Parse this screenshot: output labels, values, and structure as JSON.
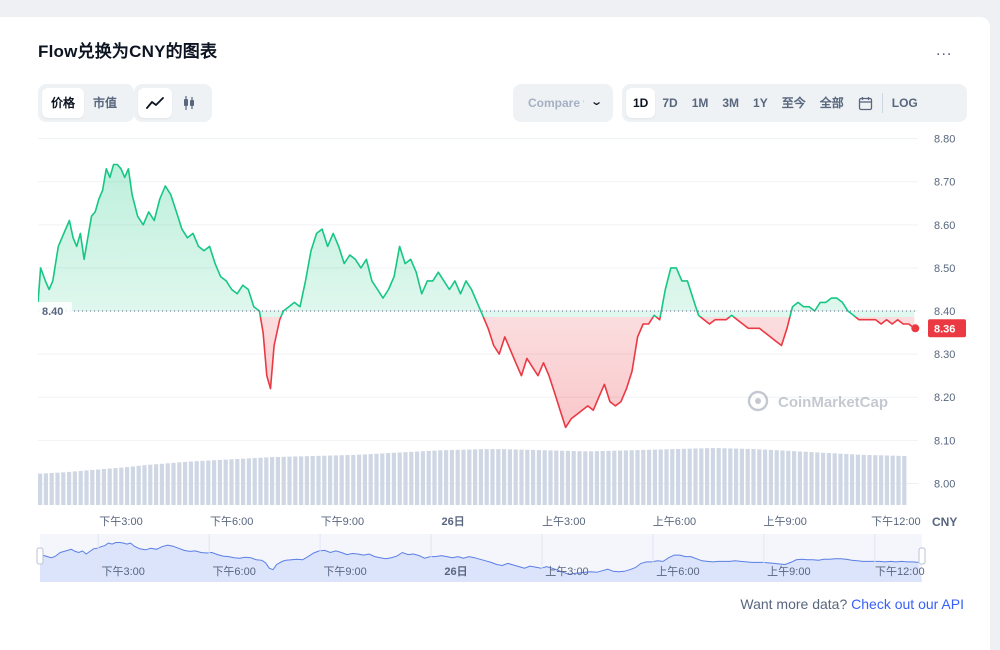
{
  "header": {
    "title": "Flow兑换为CNY的图表",
    "more_label": "..."
  },
  "toolbar": {
    "metric_tabs": [
      "价格",
      "市值"
    ],
    "active_metric": "价格",
    "chart_type_icons": [
      "line-chart-icon",
      "candlestick-icon"
    ],
    "compare_label": "Compare with",
    "range_tabs": [
      "1D",
      "7D",
      "1M",
      "3M",
      "1Y",
      "至今",
      "全部"
    ],
    "active_range": "1D",
    "calendar_icon": "calendar-icon",
    "log_label": "LOG"
  },
  "colors": {
    "up": "#16c784",
    "down": "#ea3943",
    "grid": "#eff2f5",
    "volume": "#cfd6e4",
    "navigator_fill": "#dbe4fb",
    "navigator_line": "#3861fb",
    "link": "#3861fb"
  },
  "chart_data": {
    "type": "line",
    "title": "Flow兑换为CNY的图表",
    "currency_label": "CNY",
    "baseline": 8.4,
    "baseline_label": "8.40",
    "current_value": 8.36,
    "current_label": "8.36",
    "watermark": "CoinMarketCap",
    "ylim": [
      7.95,
      8.82
    ],
    "y_ticks": [
      "8.80",
      "8.70",
      "8.60",
      "8.50",
      "8.40",
      "8.30",
      "8.20",
      "8.10",
      "8.00"
    ],
    "x_ticks": [
      "下午3:00",
      "下午6:00",
      "下午9:00",
      "26日",
      "上午3:00",
      "上午6:00",
      "上午9:00",
      "下午12:00"
    ],
    "navigator_ticks": [
      "下午3:00",
      "下午6:00",
      "下午9:00",
      "26日",
      "上午3:00",
      "上午6:00",
      "上午9:00",
      "下午12:00"
    ],
    "x": [
      0.0,
      0.1,
      0.2,
      0.3,
      0.4,
      0.5,
      0.6,
      0.7,
      0.8,
      0.9,
      1.0,
      1.1,
      1.2,
      1.3,
      1.4,
      1.5,
      1.6,
      1.7,
      1.8,
      1.9,
      2.0,
      2.1,
      2.2,
      2.3,
      2.4,
      2.5,
      2.6,
      2.7,
      2.8,
      2.9,
      3.0,
      3.1,
      3.2,
      3.3,
      3.4,
      3.5,
      3.6,
      3.7,
      3.8,
      3.9,
      4.0,
      4.1,
      4.2,
      4.3,
      4.4,
      4.5,
      4.6,
      4.7,
      4.8,
      4.9,
      5.0,
      5.1,
      5.2,
      5.3,
      5.4,
      5.5,
      5.6,
      5.7,
      5.8,
      5.9,
      6.0,
      6.1,
      6.2,
      6.3,
      6.4,
      6.5,
      6.6,
      6.7,
      6.8,
      6.9,
      7.0,
      7.1,
      7.2,
      7.3,
      7.4,
      7.5,
      7.6,
      7.7,
      7.8,
      7.9,
      8.0,
      8.1,
      8.2,
      8.3,
      8.4,
      8.5,
      8.6,
      8.7,
      8.8,
      8.9,
      9.0,
      9.1,
      9.2,
      9.3,
      9.4,
      9.5,
      9.6,
      9.7,
      9.8,
      9.9,
      10.0,
      10.1,
      10.2,
      10.3,
      10.4,
      10.5,
      10.6,
      10.7,
      10.8,
      10.9,
      11.0,
      11.1,
      11.2,
      11.3,
      11.4,
      11.5,
      11.6,
      11.7,
      11.8,
      11.9,
      12.0,
      12.1,
      12.2,
      12.3,
      12.4,
      12.5,
      12.6,
      12.7,
      12.8,
      12.9,
      13.0,
      13.1,
      13.2,
      13.3,
      13.4,
      13.5,
      13.6,
      13.7,
      13.8,
      13.9,
      14.0,
      14.1,
      14.2,
      14.3,
      14.4,
      14.5,
      14.6,
      14.7,
      14.8,
      14.9,
      15.0,
      15.1,
      15.2,
      15.3,
      15.4,
      15.5,
      15.6,
      15.7,
      15.8,
      15.9,
      16.0,
      16.1,
      16.2,
      16.3,
      16.4,
      16.5,
      16.6,
      16.7,
      16.8,
      16.9,
      17.0,
      17.1,
      17.2,
      17.3,
      17.4,
      17.5,
      17.6,
      17.7,
      17.8,
      17.9,
      18.0,
      18.1,
      18.2,
      18.3,
      18.4,
      18.5,
      18.6,
      18.7,
      18.8,
      18.9,
      19.0,
      19.1,
      19.2,
      19.3,
      19.4,
      19.5,
      19.6,
      19.7,
      19.8,
      19.9,
      20.0,
      20.1,
      20.2,
      20.3,
      20.4,
      20.5,
      20.6,
      20.7,
      20.8,
      20.9,
      21.0,
      21.1,
      21.2,
      21.3,
      21.4,
      21.5,
      21.6,
      21.7,
      21.8,
      21.9,
      22.0,
      22.1,
      22.2,
      22.3,
      22.4,
      22.5,
      22.6,
      22.7,
      22.8,
      22.9,
      23.0,
      23.1,
      23.2,
      23.3,
      23.4,
      23.5,
      23.6,
      23.7,
      23.8,
      23.9
    ],
    "x_start": 12.75,
    "x_tick_positions": [
      15,
      18,
      21,
      24,
      27,
      30,
      33,
      36
    ],
    "points": [
      [
        12.75,
        8.42
      ],
      [
        12.82,
        8.5
      ],
      [
        12.95,
        8.47
      ],
      [
        13.05,
        8.45
      ],
      [
        13.15,
        8.47
      ],
      [
        13.3,
        8.55
      ],
      [
        13.45,
        8.58
      ],
      [
        13.6,
        8.61
      ],
      [
        13.7,
        8.57
      ],
      [
        13.8,
        8.55
      ],
      [
        13.9,
        8.58
      ],
      [
        14.0,
        8.52
      ],
      [
        14.1,
        8.57
      ],
      [
        14.2,
        8.62
      ],
      [
        14.3,
        8.63
      ],
      [
        14.4,
        8.66
      ],
      [
        14.5,
        8.68
      ],
      [
        14.6,
        8.73
      ],
      [
        14.7,
        8.71
      ],
      [
        14.8,
        8.74
      ],
      [
        14.9,
        8.74
      ],
      [
        15.0,
        8.73
      ],
      [
        15.1,
        8.71
      ],
      [
        15.2,
        8.73
      ],
      [
        15.3,
        8.67
      ],
      [
        15.45,
        8.62
      ],
      [
        15.6,
        8.6
      ],
      [
        15.75,
        8.63
      ],
      [
        15.9,
        8.61
      ],
      [
        16.05,
        8.66
      ],
      [
        16.2,
        8.69
      ],
      [
        16.35,
        8.67
      ],
      [
        16.5,
        8.63
      ],
      [
        16.65,
        8.59
      ],
      [
        16.8,
        8.57
      ],
      [
        16.95,
        8.58
      ],
      [
        17.1,
        8.55
      ],
      [
        17.25,
        8.54
      ],
      [
        17.4,
        8.55
      ],
      [
        17.55,
        8.51
      ],
      [
        17.7,
        8.48
      ],
      [
        17.85,
        8.47
      ],
      [
        18.0,
        8.45
      ],
      [
        18.15,
        8.44
      ],
      [
        18.3,
        8.46
      ],
      [
        18.45,
        8.45
      ],
      [
        18.6,
        8.41
      ],
      [
        18.75,
        8.4
      ],
      [
        18.85,
        8.35
      ],
      [
        18.95,
        8.25
      ],
      [
        19.05,
        8.22
      ],
      [
        19.15,
        8.32
      ],
      [
        19.3,
        8.38
      ],
      [
        19.4,
        8.4
      ],
      [
        19.55,
        8.41
      ],
      [
        19.7,
        8.42
      ],
      [
        19.85,
        8.41
      ],
      [
        20.0,
        8.47
      ],
      [
        20.15,
        8.54
      ],
      [
        20.3,
        8.58
      ],
      [
        20.45,
        8.59
      ],
      [
        20.6,
        8.55
      ],
      [
        20.75,
        8.58
      ],
      [
        20.9,
        8.55
      ],
      [
        21.05,
        8.51
      ],
      [
        21.2,
        8.53
      ],
      [
        21.35,
        8.52
      ],
      [
        21.5,
        8.5
      ],
      [
        21.65,
        8.52
      ],
      [
        21.8,
        8.47
      ],
      [
        21.95,
        8.45
      ],
      [
        22.1,
        8.43
      ],
      [
        22.25,
        8.45
      ],
      [
        22.4,
        8.48
      ],
      [
        22.55,
        8.55
      ],
      [
        22.7,
        8.51
      ],
      [
        22.85,
        8.52
      ],
      [
        23.0,
        8.49
      ],
      [
        23.15,
        8.44
      ],
      [
        23.3,
        8.47
      ],
      [
        23.45,
        8.47
      ],
      [
        23.6,
        8.49
      ],
      [
        23.75,
        8.47
      ],
      [
        23.9,
        8.45
      ],
      [
        24.05,
        8.47
      ],
      [
        24.2,
        8.44
      ],
      [
        24.35,
        8.47
      ],
      [
        24.5,
        8.45
      ],
      [
        24.65,
        8.42
      ],
      [
        24.8,
        8.39
      ],
      [
        24.95,
        8.36
      ],
      [
        25.1,
        8.32
      ],
      [
        25.25,
        8.3
      ],
      [
        25.4,
        8.34
      ],
      [
        25.55,
        8.31
      ],
      [
        25.7,
        8.28
      ],
      [
        25.85,
        8.25
      ],
      [
        26.0,
        8.29
      ],
      [
        26.15,
        8.27
      ],
      [
        26.3,
        8.25
      ],
      [
        26.45,
        8.28
      ],
      [
        26.6,
        8.25
      ],
      [
        26.75,
        8.21
      ],
      [
        26.9,
        8.17
      ],
      [
        27.05,
        8.13
      ],
      [
        27.2,
        8.15
      ],
      [
        27.35,
        8.16
      ],
      [
        27.5,
        8.17
      ],
      [
        27.65,
        8.18
      ],
      [
        27.8,
        8.17
      ],
      [
        27.95,
        8.2
      ],
      [
        28.1,
        8.23
      ],
      [
        28.25,
        8.19
      ],
      [
        28.4,
        8.18
      ],
      [
        28.55,
        8.19
      ],
      [
        28.7,
        8.22
      ],
      [
        28.85,
        8.26
      ],
      [
        29.0,
        8.34
      ],
      [
        29.15,
        8.37
      ],
      [
        29.3,
        8.37
      ],
      [
        29.45,
        8.39
      ],
      [
        29.6,
        8.38
      ],
      [
        29.75,
        8.45
      ],
      [
        29.9,
        8.5
      ],
      [
        30.05,
        8.5
      ],
      [
        30.2,
        8.47
      ],
      [
        30.35,
        8.47
      ],
      [
        30.5,
        8.43
      ],
      [
        30.65,
        8.39
      ],
      [
        30.8,
        8.38
      ],
      [
        30.95,
        8.37
      ],
      [
        31.1,
        8.38
      ],
      [
        31.25,
        8.38
      ],
      [
        31.4,
        8.38
      ],
      [
        31.55,
        8.39
      ],
      [
        31.7,
        8.38
      ],
      [
        31.85,
        8.37
      ],
      [
        32.0,
        8.36
      ],
      [
        32.15,
        8.36
      ],
      [
        32.3,
        8.36
      ],
      [
        32.45,
        8.35
      ],
      [
        32.6,
        8.34
      ],
      [
        32.75,
        8.33
      ],
      [
        32.9,
        8.32
      ],
      [
        33.05,
        8.36
      ],
      [
        33.2,
        8.41
      ],
      [
        33.35,
        8.42
      ],
      [
        33.5,
        8.41
      ],
      [
        33.65,
        8.41
      ],
      [
        33.8,
        8.4
      ],
      [
        33.95,
        8.42
      ],
      [
        34.1,
        8.42
      ],
      [
        34.25,
        8.43
      ],
      [
        34.4,
        8.43
      ],
      [
        34.55,
        8.42
      ],
      [
        34.7,
        8.4
      ],
      [
        34.85,
        8.39
      ],
      [
        35.0,
        8.38
      ],
      [
        35.15,
        8.38
      ],
      [
        35.3,
        8.38
      ],
      [
        35.45,
        8.38
      ],
      [
        35.6,
        8.37
      ],
      [
        35.75,
        8.38
      ],
      [
        35.9,
        8.37
      ],
      [
        36.05,
        8.38
      ],
      [
        36.2,
        8.37
      ],
      [
        36.35,
        8.37
      ],
      [
        36.5,
        8.36
      ]
    ],
    "volume_relative": [
      0.55,
      0.57,
      0.6,
      0.63,
      0.66,
      0.7,
      0.73,
      0.76,
      0.78,
      0.8,
      0.82,
      0.84,
      0.85,
      0.86,
      0.87,
      0.88,
      0.9,
      0.92,
      0.94,
      0.96,
      0.97,
      0.98,
      0.98,
      0.97,
      0.96,
      0.95,
      0.94,
      0.95,
      0.96,
      0.97,
      0.98,
      0.99,
      1.0,
      0.99,
      0.98,
      0.96,
      0.94,
      0.92,
      0.9,
      0.88,
      0.87,
      0.86
    ]
  },
  "footer": {
    "prompt": "Want more data?",
    "link_label": "Check out our API"
  }
}
